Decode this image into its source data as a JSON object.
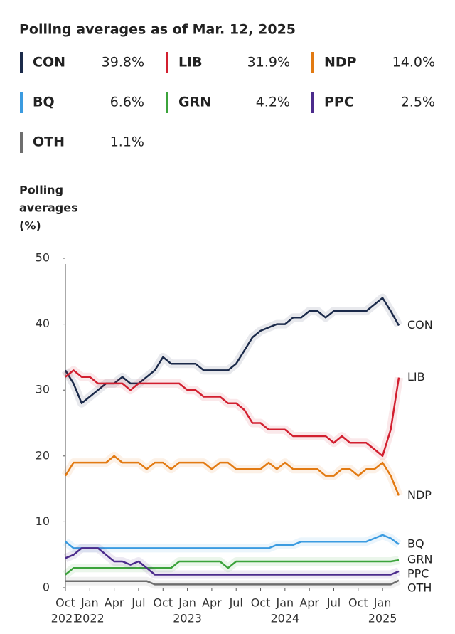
{
  "chart_data": {
    "type": "line",
    "title": "Polling averages as of Mar. 12, 2025",
    "y_label": [
      "Polling",
      "averages",
      "(%)"
    ],
    "x": [
      "2021-10",
      "2021-11",
      "2021-12",
      "2022-01",
      "2022-02",
      "2022-03",
      "2022-04",
      "2022-05",
      "2022-06",
      "2022-07",
      "2022-08",
      "2022-09",
      "2022-10",
      "2022-11",
      "2022-12",
      "2023-01",
      "2023-02",
      "2023-03",
      "2023-04",
      "2023-05",
      "2023-06",
      "2023-07",
      "2023-08",
      "2023-09",
      "2023-10",
      "2023-11",
      "2023-12",
      "2024-01",
      "2024-02",
      "2024-03",
      "2024-04",
      "2024-05",
      "2024-06",
      "2024-07",
      "2024-08",
      "2024-09",
      "2024-10",
      "2024-11",
      "2024-12",
      "2025-01",
      "2025-02",
      "2025-03"
    ],
    "xlim": [
      "2021-10",
      "2025-03"
    ],
    "xticks": [
      {
        "value": "2021-10",
        "label": "Oct",
        "year": "2021"
      },
      {
        "value": "2022-01",
        "label": "Jan",
        "year": "2022"
      },
      {
        "value": "2022-04",
        "label": "Apr"
      },
      {
        "value": "2022-07",
        "label": "Jul"
      },
      {
        "value": "2022-10",
        "label": "Oct"
      },
      {
        "value": "2023-01",
        "label": "Jan",
        "year": "2023"
      },
      {
        "value": "2023-04",
        "label": "Apr"
      },
      {
        "value": "2023-07",
        "label": "Jul"
      },
      {
        "value": "2023-10",
        "label": "Oct"
      },
      {
        "value": "2024-01",
        "label": "Jan",
        "year": "2024"
      },
      {
        "value": "2024-04",
        "label": "Apr"
      },
      {
        "value": "2024-07",
        "label": "Jul"
      },
      {
        "value": "2024-10",
        "label": "Oct"
      },
      {
        "value": "2025-01",
        "label": "Jan",
        "year": "2025"
      }
    ],
    "ylim": [
      0,
      50
    ],
    "yticks": [
      0,
      10,
      20,
      30,
      40,
      50
    ],
    "grid": false,
    "series": [
      {
        "name": "CON",
        "legend_value": "39.8%",
        "color": "#1b2a4a",
        "values": [
          33,
          31,
          28,
          29,
          30,
          31,
          31,
          32,
          31,
          31,
          32,
          33,
          35,
          34,
          34,
          34,
          34,
          33,
          33,
          33,
          33,
          34,
          36,
          38,
          39,
          39.5,
          40,
          40,
          41,
          41,
          42,
          42,
          41,
          42,
          42,
          42,
          42,
          42,
          43,
          44,
          42,
          39.8
        ]
      },
      {
        "name": "LIB",
        "legend_value": "31.9%",
        "color": "#d21f2f",
        "values": [
          32,
          33,
          32,
          32,
          31,
          31,
          31,
          31,
          30,
          31,
          31,
          31,
          31,
          31,
          31,
          30,
          30,
          29,
          29,
          29,
          28,
          28,
          27,
          25,
          25,
          24,
          24,
          24,
          23,
          23,
          23,
          23,
          23,
          22,
          23,
          22,
          22,
          22,
          21,
          20,
          24,
          31.9
        ]
      },
      {
        "name": "NDP",
        "legend_value": "14.0%",
        "color": "#e27a12",
        "values": [
          17,
          19,
          19,
          19,
          19,
          19,
          20,
          19,
          19,
          19,
          18,
          19,
          19,
          18,
          19,
          19,
          19,
          19,
          18,
          19,
          19,
          18,
          18,
          18,
          18,
          19,
          18,
          19,
          18,
          18,
          18,
          18,
          17,
          17,
          18,
          18,
          17,
          18,
          18,
          19,
          17,
          14
        ]
      },
      {
        "name": "BQ",
        "legend_value": "6.6%",
        "color": "#3b9be0",
        "values": [
          7,
          6,
          6,
          6,
          6,
          6,
          6,
          6,
          6,
          6,
          6,
          6,
          6,
          6,
          6,
          6,
          6,
          6,
          6,
          6,
          6,
          6,
          6,
          6,
          6,
          6,
          6.5,
          6.5,
          6.5,
          7,
          7,
          7,
          7,
          7,
          7,
          7,
          7,
          7,
          7.5,
          8,
          7.5,
          6.6
        ]
      },
      {
        "name": "GRN",
        "legend_value": "4.2%",
        "color": "#3ba33b",
        "values": [
          2,
          3,
          3,
          3,
          3,
          3,
          3,
          3,
          3,
          3,
          3,
          3,
          3,
          3,
          4,
          4,
          4,
          4,
          4,
          4,
          3,
          4,
          4,
          4,
          4,
          4,
          4,
          4,
          4,
          4,
          4,
          4,
          4,
          4,
          4,
          4,
          4,
          4,
          4,
          4,
          4,
          4.2
        ]
      },
      {
        "name": "PPC",
        "legend_value": "2.5%",
        "color": "#4b2b8c",
        "values": [
          4.5,
          5,
          6,
          6,
          6,
          5,
          4,
          4,
          3.5,
          4,
          3,
          2,
          2,
          2,
          2,
          2,
          2,
          2,
          2,
          2,
          2,
          2,
          2,
          2,
          2,
          2,
          2,
          2,
          2,
          2,
          2,
          2,
          2,
          2,
          2,
          2,
          2,
          2,
          2,
          2,
          2,
          2.5
        ]
      },
      {
        "name": "OTH",
        "legend_value": "1.1%",
        "color": "#6e6e6e",
        "values": [
          1,
          1,
          1,
          1,
          1,
          1,
          1,
          1,
          1,
          1,
          1,
          0.5,
          0.5,
          0.5,
          0.5,
          0.5,
          0.5,
          0.5,
          0.5,
          0.5,
          0.5,
          0.5,
          0.5,
          0.5,
          0.5,
          0.5,
          0.5,
          0.5,
          0.5,
          0.5,
          0.5,
          0.5,
          0.5,
          0.5,
          0.5,
          0.5,
          0.5,
          0.5,
          0.5,
          0.5,
          0.5,
          1.1
        ]
      }
    ]
  }
}
